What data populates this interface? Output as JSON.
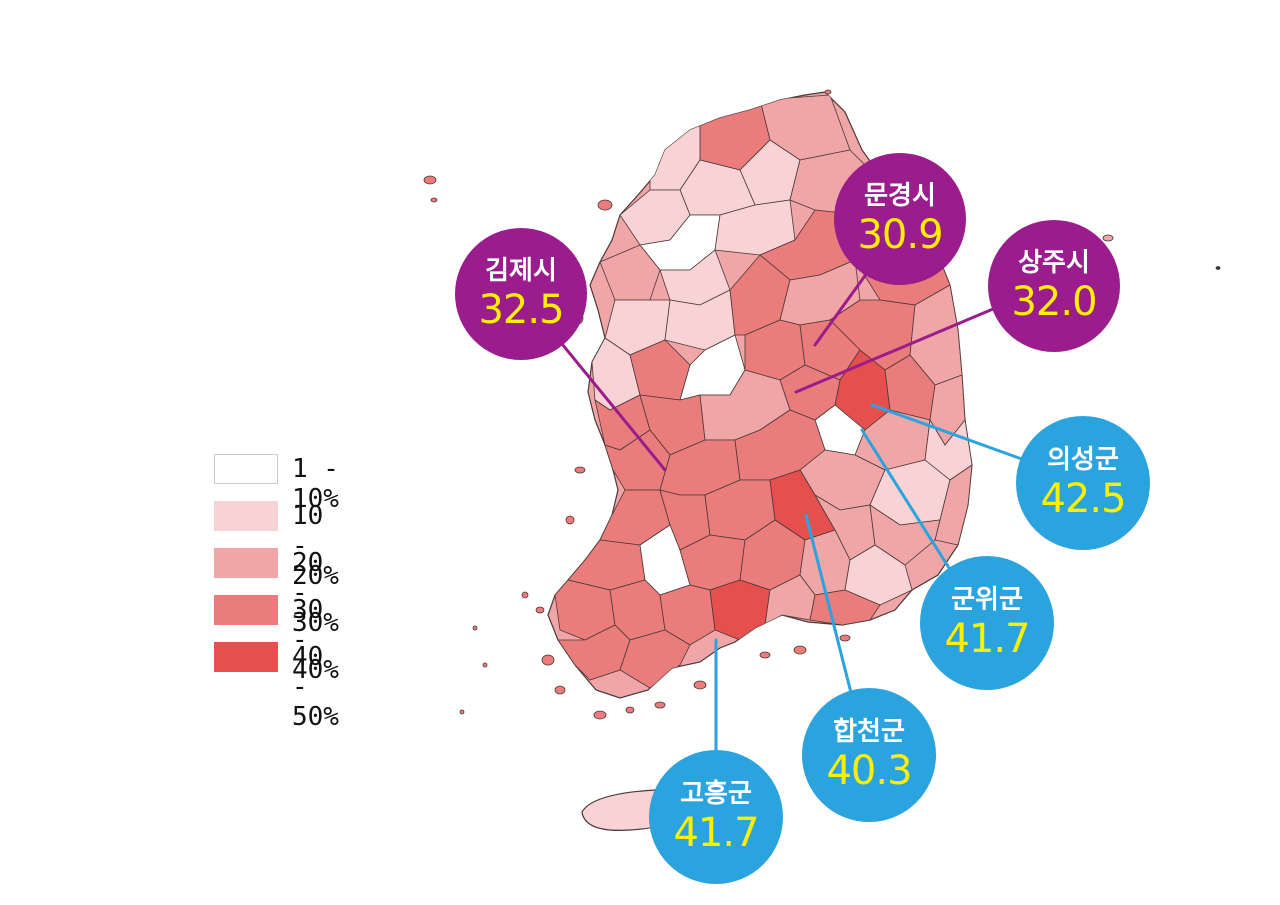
{
  "colors": {
    "purple": "#9b1c8c",
    "blue": "#2aa3df",
    "value_yellow": "#ffef00",
    "border": "#4a3838"
  },
  "legend": {
    "items": [
      {
        "label": "1 - 10%",
        "color": "#ffffff"
      },
      {
        "label": "10 - 20%",
        "color": "#f8d2d4"
      },
      {
        "label": "20 - 30%",
        "color": "#f0a5a6"
      },
      {
        "label": "30 - 40%",
        "color": "#ea7d7b"
      },
      {
        "label": "40 - 50%",
        "color": "#e5504e"
      }
    ]
  },
  "callouts": [
    {
      "name": "문경시",
      "value": "30.9",
      "group": "purple"
    },
    {
      "name": "상주시",
      "value": "32.0",
      "group": "purple"
    },
    {
      "name": "김제시",
      "value": "32.5",
      "group": "purple"
    },
    {
      "name": "의성군",
      "value": "42.5",
      "group": "blue"
    },
    {
      "name": "군위군",
      "value": "41.7",
      "group": "blue"
    },
    {
      "name": "합천군",
      "value": "40.3",
      "group": "blue"
    },
    {
      "name": "고흥군",
      "value": "41.7",
      "group": "blue"
    }
  ]
}
